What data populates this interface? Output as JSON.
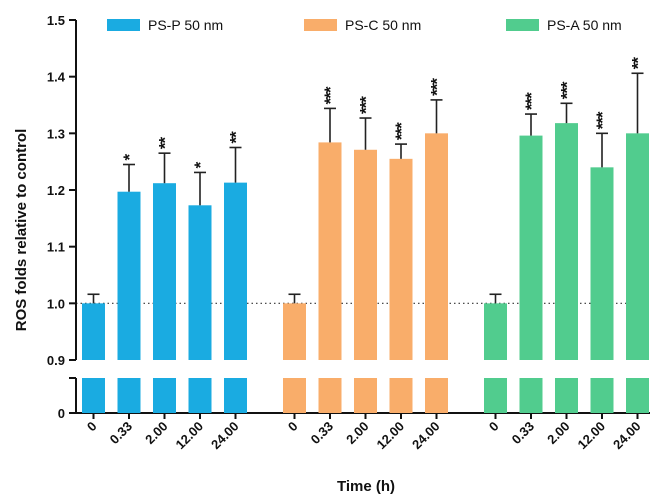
{
  "chart_data": {
    "type": "bar",
    "xlabel": "Time (h)",
    "ylabel": "ROS folds relative to control",
    "ylim": [
      0.9,
      1.5
    ],
    "broken_axis": {
      "lower_tick": "0",
      "break_at": "0.9"
    },
    "y_ticks": [
      "0.9",
      "1.0",
      "1.1",
      "1.2",
      "1.3",
      "1.4",
      "1.5"
    ],
    "baseline": 1.0,
    "categories": [
      "0",
      "0.33",
      "2.00",
      "12.00",
      "24.00"
    ],
    "legend_position": "top",
    "series": [
      {
        "name": "PS-P 50 nm",
        "color": "#1AABE1",
        "values": [
          1.0,
          1.197,
          1.212,
          1.173,
          1.213
        ],
        "errors": [
          0.016,
          0.048,
          0.053,
          0.058,
          0.062
        ],
        "significance": [
          "",
          "*",
          "**",
          "*",
          "**"
        ]
      },
      {
        "name": "PS-C 50 nm",
        "color": "#F9AD6A",
        "values": [
          1.0,
          1.284,
          1.271,
          1.255,
          1.3
        ],
        "errors": [
          0.016,
          0.06,
          0.056,
          0.026,
          0.059
        ],
        "significance": [
          "",
          "***",
          "***",
          "***",
          "***"
        ]
      },
      {
        "name": "PS-A 50 nm",
        "color": "#51CC8E",
        "values": [
          1.0,
          1.296,
          1.318,
          1.24,
          1.3
        ],
        "errors": [
          0.016,
          0.038,
          0.035,
          0.06,
          0.106
        ],
        "significance": [
          "",
          "***",
          "***",
          "***",
          "**"
        ]
      }
    ]
  }
}
